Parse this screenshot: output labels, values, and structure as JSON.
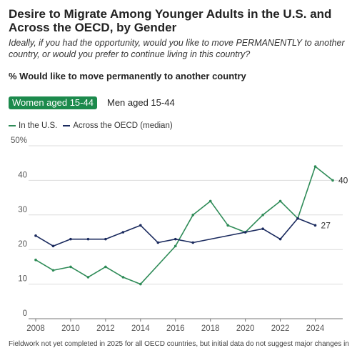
{
  "header": {
    "title": "Desire to Migrate Among Younger Adults in the U.S. and Across the OECD, by Gender",
    "subtitle": "Ideally, if you had the opportunity, would you like to move PERMANENTLY to another country, or would you prefer to continue living in this country?",
    "measure": "% Would like to move permanently to another country"
  },
  "tabs": [
    {
      "label": "Women aged 15-44",
      "active": true
    },
    {
      "label": "Men aged 15-44",
      "active": false
    }
  ],
  "footnote": "Fieldwork not yet completed in 2025 for all OECD countries, but initial data do not suggest major changes in",
  "colors": {
    "us": "#2e8b57",
    "oecd": "#1a2a5e",
    "tab_active": "#1c8a4c"
  },
  "chart_data": {
    "type": "line",
    "x": [
      2008,
      2009,
      2010,
      2011,
      2012,
      2013,
      2014,
      2015,
      2016,
      2017,
      2018,
      2019,
      2020,
      2021,
      2022,
      2023,
      2024,
      2025
    ],
    "series": [
      {
        "name": "In the U.S.",
        "values": [
          17,
          14,
          15,
          12,
          15,
          12,
          10,
          null,
          21,
          30,
          34,
          27,
          25,
          30,
          34,
          29,
          44,
          40
        ],
        "end_label": "40"
      },
      {
        "name": "Across the OECD (median)",
        "values": [
          24,
          21,
          23,
          23,
          23,
          25,
          27,
          22,
          23,
          22,
          null,
          null,
          25,
          26,
          23,
          29,
          27,
          null
        ],
        "end_label": "27"
      }
    ],
    "xticks": [
      "2008",
      "2010",
      "2012",
      "2014",
      "2016",
      "2018",
      "2020",
      "2022",
      "2024"
    ],
    "yticks": [
      "0",
      "10",
      "20",
      "30",
      "40",
      "50%"
    ],
    "ylim": [
      0,
      50
    ],
    "xlim": [
      2008,
      2025
    ],
    "grid": true,
    "legend_position": "top-left"
  }
}
